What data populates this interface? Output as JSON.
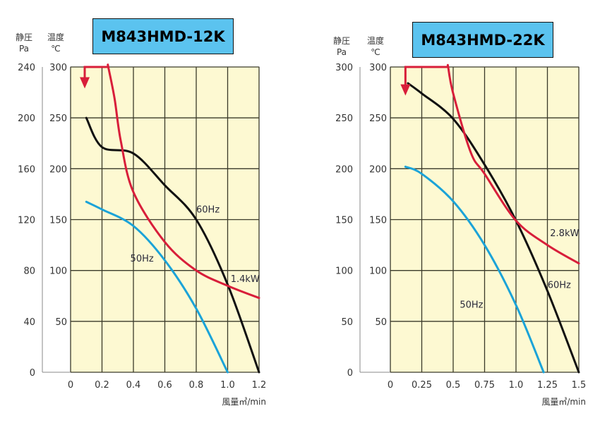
{
  "chart_data": [
    {
      "type": "line",
      "title": "M843HMD-12K",
      "xlabel": "風量㎥/min",
      "ylabel_left": [
        "静圧",
        "Pa"
      ],
      "ylabel_right": [
        "温度",
        "℃"
      ],
      "xlim": [
        0,
        1.2
      ],
      "ylim_temp": [
        0,
        300
      ],
      "ylim_pa": [
        0,
        240
      ],
      "x_ticks": [
        "0",
        "0.2",
        "0.4",
        "0.6",
        "0.8",
        "1.0",
        "1.2"
      ],
      "x_tick_values": [
        0,
        0.2,
        0.4,
        0.6,
        0.8,
        1.0,
        1.2
      ],
      "pa_ticks": [
        "0",
        "40",
        "80",
        "120",
        "160",
        "200",
        "240"
      ],
      "temp_ticks": [
        "",
        "50",
        "100",
        "150",
        "200",
        "250",
        "300"
      ],
      "temp_tick_values": [
        0,
        50,
        100,
        150,
        200,
        250,
        300
      ],
      "grid": true,
      "colors": {
        "plot_bg": "#fdf9d2",
        "grid": "#3a3a2a",
        "black": "#111111",
        "blue": "#1ba3d8",
        "red": "#d81e3a"
      },
      "series": [
        {
          "name": "60Hz",
          "unit": "Pa",
          "color": "black",
          "x": [
            0.1,
            0.2,
            0.4,
            0.6,
            0.8,
            1.0,
            1.2
          ],
          "y": [
            200,
            177,
            172,
            147,
            120,
            69,
            0
          ]
        },
        {
          "name": "50Hz",
          "unit": "Pa",
          "color": "blue",
          "x": [
            0.1,
            0.2,
            0.4,
            0.6,
            0.8,
            1.0
          ],
          "y": [
            134,
            128,
            115,
            88,
            50,
            0
          ]
        },
        {
          "name": "1.4kW",
          "unit": "℃",
          "color": "red",
          "x": [
            0.24,
            0.28,
            0.32,
            0.4,
            0.6,
            0.8,
            1.0,
            1.2
          ],
          "y": [
            300,
            269,
            227,
            177,
            128,
            100,
            85,
            73
          ],
          "limit": {
            "x_from": 0.09,
            "x_to": 0.24,
            "y": 300,
            "arrow_to_y": 283
          }
        }
      ],
      "annotations": [
        {
          "text": "60Hz",
          "x": 0.8,
          "y_temp": 154
        },
        {
          "text": "50Hz",
          "x": 0.38,
          "y_temp": 106
        },
        {
          "text": "1.4kW",
          "x": 1.01,
          "y_temp": 86
        }
      ]
    },
    {
      "type": "line",
      "title": "M843HMD-22K",
      "xlabel": "風量㎥/min",
      "ylabel_left": [
        "静圧",
        "Pa"
      ],
      "ylabel_right": [
        "温度",
        "℃"
      ],
      "xlim": [
        0,
        1.5
      ],
      "ylim_temp": [
        0,
        300
      ],
      "ylim_pa": [
        0,
        300
      ],
      "x_ticks": [
        "0",
        "0.25",
        "0.5",
        "0.75",
        "1.0",
        "1.25",
        "1.5"
      ],
      "x_tick_values": [
        0,
        0.25,
        0.5,
        0.75,
        1.0,
        1.25,
        1.5
      ],
      "pa_ticks": [
        "0",
        "50",
        "100",
        "150",
        "200",
        "250",
        "300"
      ],
      "temp_ticks": [
        "",
        "50",
        "100",
        "150",
        "200",
        "250",
        "300"
      ],
      "temp_tick_values": [
        0,
        50,
        100,
        150,
        200,
        250,
        300
      ],
      "grid": true,
      "colors": {
        "plot_bg": "#fdf9d2",
        "grid": "#3a3a2a",
        "black": "#111111",
        "blue": "#1ba3d8",
        "red": "#d81e3a"
      },
      "series": [
        {
          "name": "60Hz",
          "unit": "Pa",
          "color": "black",
          "x": [
            0.14,
            0.25,
            0.5,
            0.75,
            1.0,
            1.25,
            1.5
          ],
          "y": [
            284,
            274,
            249,
            204,
            149,
            80,
            0
          ]
        },
        {
          "name": "50Hz",
          "unit": "Pa",
          "color": "blue",
          "x": [
            0.12,
            0.25,
            0.5,
            0.75,
            1.0,
            1.22
          ],
          "y": [
            202,
            195,
            168,
            125,
            66,
            0
          ]
        },
        {
          "name": "2.8kW",
          "unit": "℃",
          "color": "red",
          "x": [
            0.46,
            0.5,
            0.64,
            0.75,
            1.0,
            1.25,
            1.5
          ],
          "y": [
            300,
            274,
            216,
            195,
            149,
            125,
            107
          ],
          "limit": {
            "x_from": 0.12,
            "x_to": 0.46,
            "y": 300,
            "arrow_to_y": 276
          }
        }
      ],
      "annotations": [
        {
          "text": "2.8kW",
          "x": 1.26,
          "y_temp": 131
        },
        {
          "text": "60Hz",
          "x": 1.24,
          "y_temp": 80
        },
        {
          "text": "50Hz",
          "x": 0.75,
          "y_temp": 66
        }
      ]
    }
  ]
}
